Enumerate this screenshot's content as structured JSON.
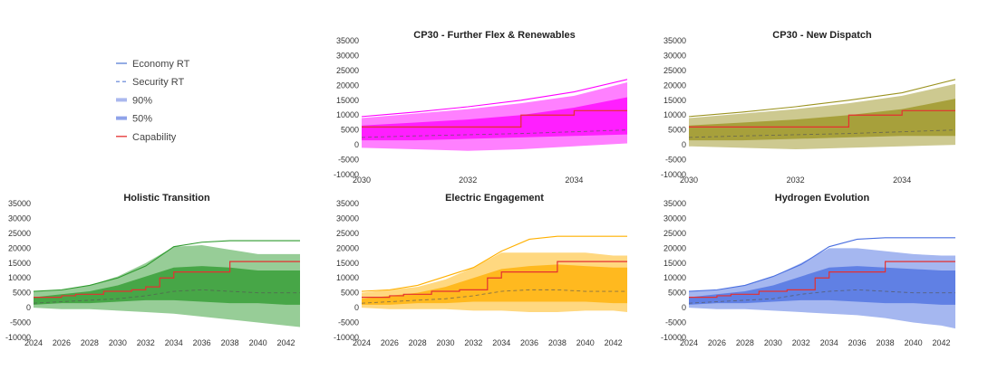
{
  "legend": {
    "items": [
      {
        "key": "economy",
        "label": "Economy RT",
        "style": "solid-thin",
        "color": "#5a7fd6"
      },
      {
        "key": "security",
        "label": "Security RT",
        "style": "dashed",
        "color": "#5a7fd6"
      },
      {
        "key": "p90",
        "label": "90%",
        "style": "band",
        "color": "#aab8ee"
      },
      {
        "key": "p50",
        "label": "50%",
        "style": "band",
        "color": "#8fa3ea"
      },
      {
        "key": "capability",
        "label": "Capability",
        "style": "solid-red",
        "color": "#e53030"
      }
    ]
  },
  "chart_data": [
    {
      "type": "area",
      "id": "cp30-flex",
      "title": "CP30 - Further Flex & Renewables",
      "color": "#ff00ff",
      "xlim": [
        2030,
        2035
      ],
      "ylim": [
        -10000,
        35000
      ],
      "xticks": [
        2030,
        2032,
        2034
      ],
      "yticks": [
        -10000,
        -5000,
        0,
        5000,
        10000,
        15000,
        20000,
        25000,
        30000,
        35000
      ],
      "x": [
        2030,
        2031,
        2032,
        2033,
        2034,
        2035
      ],
      "economy": [
        9500,
        11000,
        12800,
        15000,
        17800,
        22000
      ],
      "security": [
        2500,
        3000,
        3400,
        3800,
        4400,
        5000
      ],
      "p90_low": [
        -1000,
        -1500,
        -2000,
        -1500,
        -500,
        500
      ],
      "p90_high": [
        9000,
        10500,
        12000,
        14000,
        16500,
        21000
      ],
      "p50_low": [
        1500,
        1500,
        2000,
        2500,
        3000,
        3500
      ],
      "p50_high": [
        6500,
        7500,
        8500,
        10000,
        12500,
        16000
      ],
      "capability": {
        "x": [
          2030,
          2033,
          2033,
          2034,
          2034,
          2035
        ],
        "y": [
          6000,
          6000,
          10000,
          10000,
          11500,
          11500
        ]
      }
    },
    {
      "type": "area",
      "id": "cp30-dispatch",
      "title": "CP30 - New Dispatch",
      "color": "#9b9320",
      "xlim": [
        2030,
        2035
      ],
      "ylim": [
        -10000,
        35000
      ],
      "xticks": [
        2030,
        2032,
        2034
      ],
      "yticks": [
        -10000,
        -5000,
        0,
        5000,
        10000,
        15000,
        20000,
        25000,
        30000,
        35000
      ],
      "x": [
        2030,
        2031,
        2032,
        2033,
        2034,
        2035
      ],
      "economy": [
        9500,
        11000,
        12800,
        15000,
        17500,
        22000
      ],
      "security": [
        2500,
        3000,
        3400,
        3800,
        4400,
        5000
      ],
      "p90_low": [
        -500,
        -1000,
        -1500,
        -1000,
        -500,
        0
      ],
      "p90_high": [
        9000,
        10500,
        12000,
        14000,
        16500,
        20500
      ],
      "p50_low": [
        1500,
        1500,
        2000,
        2500,
        3000,
        3000
      ],
      "p50_high": [
        6500,
        7500,
        8500,
        10000,
        12000,
        15500
      ],
      "capability": {
        "x": [
          2030,
          2033,
          2033,
          2034,
          2034,
          2035
        ],
        "y": [
          6000,
          6000,
          10000,
          10000,
          11500,
          11500
        ]
      }
    },
    {
      "type": "area",
      "id": "holistic",
      "title": "Holistic Transition",
      "color": "#2e9a2e",
      "xlim": [
        2024,
        2043
      ],
      "ylim": [
        -10000,
        35000
      ],
      "xticks": [
        2024,
        2026,
        2028,
        2030,
        2032,
        2034,
        2036,
        2038,
        2040,
        2042
      ],
      "yticks": [
        -10000,
        -5000,
        0,
        5000,
        10000,
        15000,
        20000,
        25000,
        30000,
        35000
      ],
      "x": [
        2024,
        2026,
        2028,
        2030,
        2032,
        2034,
        2036,
        2038,
        2040,
        2042,
        2043
      ],
      "economy": [
        5500,
        6000,
        7500,
        10000,
        14000,
        20500,
        22000,
        22500,
        22500,
        22500,
        22500
      ],
      "security": [
        1500,
        2000,
        2500,
        3000,
        4000,
        5500,
        6000,
        5500,
        5000,
        5000,
        5000
      ],
      "p90_low": [
        0,
        -500,
        -500,
        -1000,
        -1500,
        -2000,
        -3000,
        -4000,
        -5000,
        -6000,
        -6500
      ],
      "p90_high": [
        5500,
        6000,
        7500,
        10500,
        15000,
        20500,
        21000,
        19500,
        18000,
        18000,
        18000
      ],
      "p50_low": [
        1000,
        1500,
        1500,
        2000,
        2500,
        2500,
        2000,
        1500,
        1500,
        1000,
        1000
      ],
      "p50_high": [
        3500,
        4500,
        5500,
        7500,
        10500,
        13500,
        14000,
        13500,
        12500,
        12500,
        12500
      ],
      "capability": {
        "x": [
          2024,
          2026,
          2026,
          2027,
          2027,
          2029,
          2029,
          2031,
          2031,
          2032,
          2032,
          2033,
          2033,
          2034,
          2034,
          2038,
          2038,
          2043
        ],
        "y": [
          3500,
          3500,
          4000,
          4000,
          4500,
          4500,
          5500,
          5500,
          6000,
          6000,
          7000,
          7000,
          10000,
          10000,
          12000,
          12000,
          15500,
          15500
        ]
      }
    },
    {
      "type": "area",
      "id": "electric",
      "title": "Electric Engagement",
      "color": "#ffb000",
      "xlim": [
        2024,
        2043
      ],
      "ylim": [
        -10000,
        35000
      ],
      "xticks": [
        2024,
        2026,
        2028,
        2030,
        2032,
        2034,
        2036,
        2038,
        2040,
        2042
      ],
      "yticks": [
        -10000,
        -5000,
        0,
        5000,
        10000,
        15000,
        20000,
        25000,
        30000,
        35000
      ],
      "x": [
        2024,
        2026,
        2028,
        2030,
        2032,
        2034,
        2036,
        2038,
        2040,
        2042,
        2043
      ],
      "economy": [
        5500,
        6000,
        7500,
        10500,
        13500,
        19000,
        23000,
        24000,
        24000,
        24000,
        24000
      ],
      "security": [
        1500,
        2000,
        2500,
        3000,
        4000,
        5500,
        6000,
        6000,
        5500,
        5500,
        5500
      ],
      "p90_low": [
        0,
        -500,
        -500,
        -500,
        -1000,
        -1000,
        -1500,
        -1500,
        -1000,
        -1000,
        -1500
      ],
      "p90_high": [
        5000,
        6000,
        7000,
        9500,
        13500,
        18500,
        18500,
        18500,
        18500,
        17500,
        17500
      ],
      "p50_low": [
        1000,
        1000,
        1500,
        1500,
        2000,
        2000,
        2000,
        2000,
        2000,
        1500,
        1500
      ],
      "p50_high": [
        3000,
        4000,
        5000,
        7000,
        10000,
        13000,
        14000,
        14500,
        14000,
        13500,
        13500
      ],
      "capability": {
        "x": [
          2024,
          2026,
          2026,
          2027,
          2027,
          2029,
          2029,
          2031,
          2031,
          2033,
          2033,
          2034,
          2034,
          2038,
          2038,
          2043
        ],
        "y": [
          3500,
          3500,
          4000,
          4000,
          4500,
          4500,
          5500,
          5500,
          6000,
          6000,
          10000,
          10000,
          12000,
          12000,
          15500,
          15500
        ]
      }
    },
    {
      "type": "area",
      "id": "hydrogen",
      "title": "Hydrogen Evolution",
      "color": "#4a6fe0",
      "xlim": [
        2024,
        2043
      ],
      "ylim": [
        -10000,
        35000
      ],
      "xticks": [
        2024,
        2026,
        2028,
        2030,
        2032,
        2034,
        2036,
        2038,
        2040,
        2042
      ],
      "yticks": [
        -10000,
        -5000,
        0,
        5000,
        10000,
        15000,
        20000,
        25000,
        30000,
        35000
      ],
      "x": [
        2024,
        2026,
        2028,
        2030,
        2032,
        2034,
        2036,
        2038,
        2040,
        2042,
        2043
      ],
      "economy": [
        5500,
        6000,
        7500,
        10500,
        14500,
        20500,
        23000,
        23500,
        23500,
        23500,
        23500
      ],
      "security": [
        1500,
        2000,
        2500,
        3000,
        4500,
        5500,
        6000,
        5500,
        5000,
        5000,
        5000
      ],
      "p90_low": [
        0,
        -500,
        -500,
        -1000,
        -1500,
        -2000,
        -2500,
        -3500,
        -5000,
        -6000,
        -7000
      ],
      "p90_high": [
        5500,
        6000,
        7500,
        10500,
        15000,
        20000,
        20000,
        19000,
        18000,
        17500,
        17500
      ],
      "p50_low": [
        1000,
        1500,
        1500,
        2000,
        2500,
        2500,
        2000,
        1500,
        1500,
        1000,
        1000
      ],
      "p50_high": [
        3500,
        4500,
        5500,
        7500,
        10500,
        13500,
        14000,
        13500,
        13000,
        12500,
        12500
      ],
      "capability": {
        "x": [
          2024,
          2026,
          2026,
          2027,
          2027,
          2029,
          2029,
          2031,
          2031,
          2033,
          2033,
          2034,
          2034,
          2038,
          2038,
          2043
        ],
        "y": [
          3500,
          3500,
          4000,
          4000,
          4500,
          4500,
          5500,
          5500,
          6000,
          6000,
          10000,
          10000,
          12000,
          12000,
          15500,
          15500
        ]
      }
    }
  ]
}
